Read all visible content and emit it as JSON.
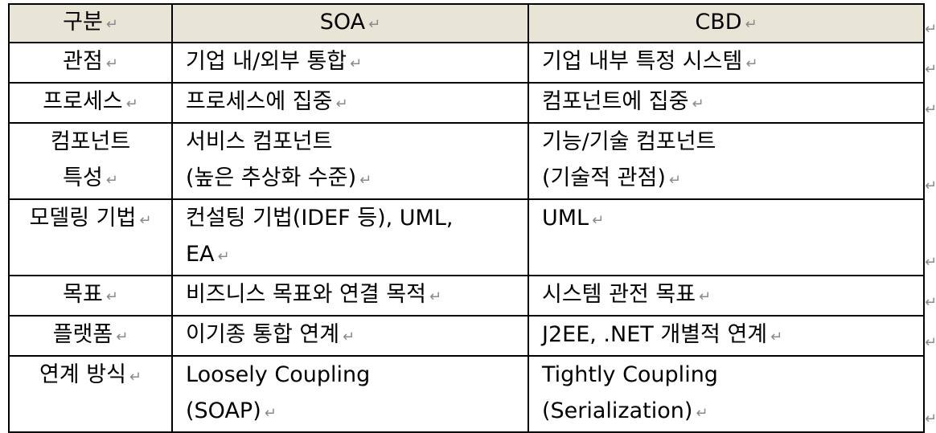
{
  "return_mark": "↵",
  "table": {
    "headers": [
      "구분",
      "SOA",
      "CBD"
    ],
    "rows": [
      {
        "label": [
          "관점"
        ],
        "soa": [
          "기업 내/외부 통합"
        ],
        "cbd": [
          "기업 내부 특정 시스템"
        ]
      },
      {
        "label": [
          "프로세스"
        ],
        "soa": [
          "프로세스에 집중"
        ],
        "cbd": [
          "컴포넌트에 집중"
        ]
      },
      {
        "label": [
          "컴포넌트",
          "특성"
        ],
        "soa": [
          "서비스 컴포넌트",
          "(높은 추상화 수준)"
        ],
        "cbd": [
          "기능/기술 컴포넌트",
          "(기술적 관점)"
        ]
      },
      {
        "label": [
          "모델링 기법"
        ],
        "soa": [
          "컨설팅 기법(IDEF 등), UML,",
          "EA"
        ],
        "cbd": [
          "UML"
        ]
      },
      {
        "label": [
          "목표"
        ],
        "soa": [
          "비즈니스 목표와 연결 목적"
        ],
        "cbd": [
          "시스템 관전 목표"
        ]
      },
      {
        "label": [
          "플랫폼"
        ],
        "soa": [
          "이기종 통합 연계"
        ],
        "cbd": [
          "J2EE, .NET 개별적 연계"
        ]
      },
      {
        "label": [
          "연계 방식"
        ],
        "soa": [
          "Loosely Coupling",
          "(SOAP)"
        ],
        "cbd": [
          "Tightly Coupling",
          "(Serialization)"
        ]
      }
    ]
  }
}
